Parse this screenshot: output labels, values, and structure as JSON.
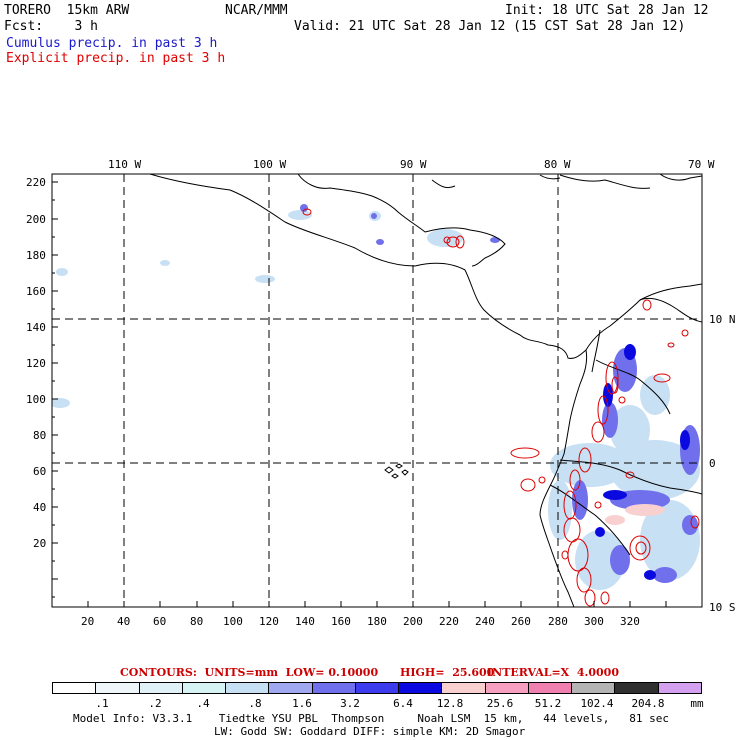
{
  "header": {
    "model": "TORERO  15km ARW",
    "center": "NCAR/MMM",
    "init": "Init: 18 UTC Sat 28 Jan 12",
    "fcst": "Fcst:    3 h",
    "valid": "Valid: 21 UTC Sat 28 Jan 12 (15 CST Sat 28 Jan 12)",
    "field1": "Cumulus precip. in past 3 h",
    "field2": "Explicit precip. in past 3 h"
  },
  "colors": {
    "field1": "#1a1acc",
    "field2": "#e00000",
    "contours": "#cc0000"
  },
  "top_lon_labels": [
    "110 W",
    "100 W",
    "90 W",
    "80 W",
    "70 W"
  ],
  "right_lat_labels": [
    "10 N",
    "0",
    "10 S"
  ],
  "y_ticks": [
    "220",
    "200",
    "180",
    "160",
    "140",
    "120",
    "100",
    "80",
    "60",
    "40",
    "20"
  ],
  "x_ticks": [
    "20",
    "40",
    "60",
    "80",
    "100",
    "120",
    "140",
    "160",
    "180",
    "200",
    "220",
    "240",
    "260",
    "280",
    "300",
    "320"
  ],
  "contour_info": {
    "contours": "CONTOURS:  UNITS=mm  LOW= 0.10000",
    "high": "HIGH=  25.600",
    "interval": "INTERVAL=X  4.0000"
  },
  "legend": {
    "colors": [
      "#ffffff",
      "#eef6fa",
      "#e0f2f8",
      "#d6f4f4",
      "#c8e0f4",
      "#a0a8f0",
      "#7070ec",
      "#3c3cee",
      "#0a0ae0",
      "#f8d0d0",
      "#f8a0c0",
      "#f080b0",
      "#b4b4b4",
      "#303030",
      "#d4a0f0"
    ],
    "labels": [
      ".1",
      ".2",
      ".4",
      ".8",
      "1.6",
      "3.2",
      "6.4",
      "12.8",
      "25.6",
      "51.2",
      "102.4",
      "204.8"
    ],
    "unit": "mm"
  },
  "footer": {
    "line1": "Model Info: V3.3.1    Tiedtke YSU PBL  Thompson     Noah LSM  15 km,   44 levels,   81 sec",
    "line2": "LW: Godd SW: Goddard DIFF: simple KM: 2D Smagor"
  }
}
